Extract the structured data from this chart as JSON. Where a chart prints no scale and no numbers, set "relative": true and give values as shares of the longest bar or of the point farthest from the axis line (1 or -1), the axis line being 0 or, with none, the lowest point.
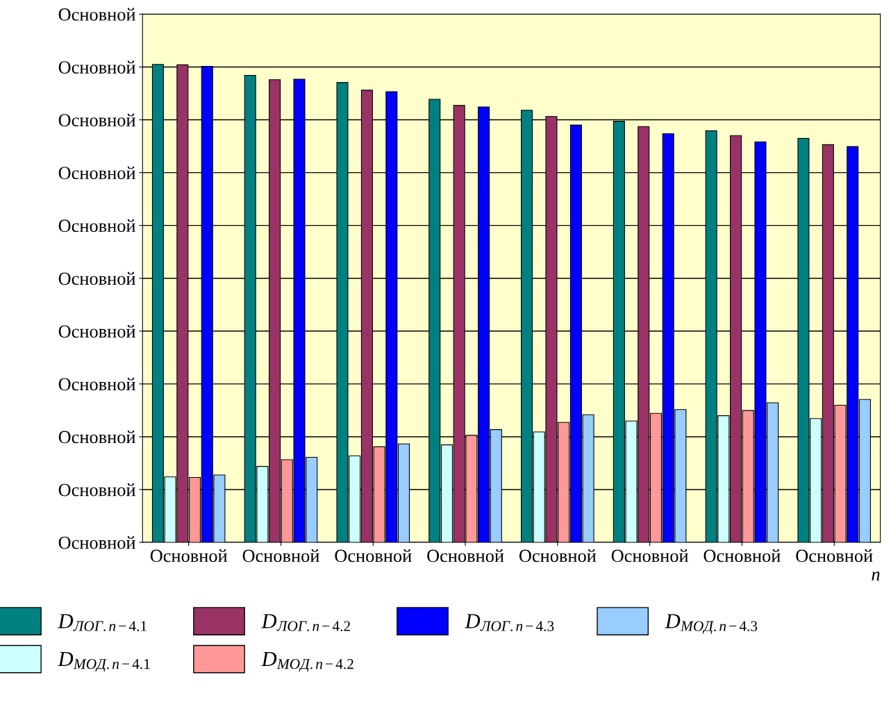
{
  "chart_data": {
    "type": "bar",
    "relative": true,
    "xlabel": "n",
    "categories": [
      "Основной",
      "Основной",
      "Основной",
      "Основной",
      "Основной",
      "Основной",
      "Основной",
      "Основной"
    ],
    "annotations": [
      "Основной",
      "Основной",
      "Основной",
      "Основной",
      "Основной",
      "Основной",
      "Основной",
      "Основной",
      "Основной",
      "Основной",
      "Основной"
    ],
    "grid": "y",
    "legend": "bottom",
    "series": [
      {
        "name": "D$_{ЛОГ.n−4.1}$",
        "color": "#008080",
        "values": [
          1,
          0.977,
          0.962,
          0.927,
          0.904,
          0.881,
          0.861,
          0.845
        ]
      },
      {
        "name": "D$_{МОД.n−4.1}$",
        "color": "#ccffff",
        "values": [
          0.137,
          0.159,
          0.181,
          0.204,
          0.231,
          0.254,
          0.265,
          0.259
        ]
      },
      {
        "name": "D$_{ЛОГ.n−4.2}$",
        "color": "#993366",
        "values": [
          0.999,
          0.968,
          0.946,
          0.914,
          0.891,
          0.87,
          0.851,
          0.832
        ]
      },
      {
        "name": "D$_{МОД.n−4.2}$",
        "color": "#ff9999",
        "values": [
          0.136,
          0.173,
          0.2,
          0.224,
          0.251,
          0.27,
          0.276,
          0.287
        ]
      },
      {
        "name": "D$_{ЛОГ.n−4.3}$",
        "color": "#0000ff",
        "values": [
          0.996,
          0.969,
          0.943,
          0.911,
          0.873,
          0.855,
          0.838,
          0.828
        ]
      },
      {
        "name": "D$_{МОД.n−4.3}$",
        "color": "#99ccff",
        "values": [
          0.141,
          0.178,
          0.206,
          0.236,
          0.267,
          0.278,
          0.292,
          0.299
        ]
      }
    ]
  }
}
